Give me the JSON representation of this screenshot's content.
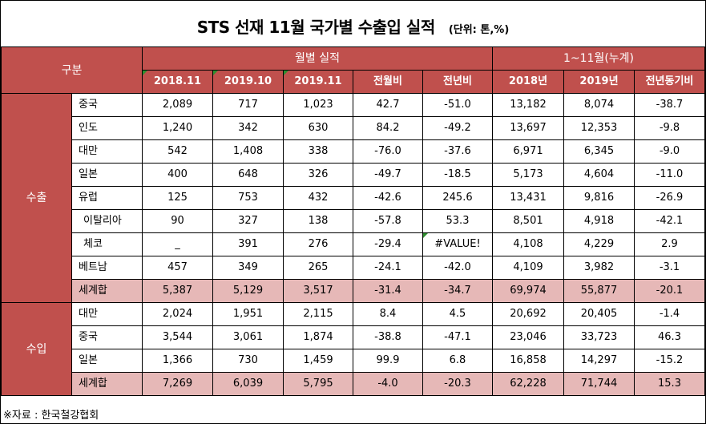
{
  "title": "STS 선재 11월 국가별 수출입 실적",
  "unit": "(단위: 톤,%)",
  "header": {
    "category": "구분",
    "monthly": "월별 실적",
    "cumulative": "1~11월(누계)",
    "columns": [
      "2018.11",
      "2019.10",
      "2019.11",
      "전월비",
      "전년비",
      "2018년",
      "2019년",
      "전년동기비"
    ]
  },
  "groups": [
    {
      "name": "수출",
      "rows": [
        {
          "country": "중국",
          "values": [
            "2,089",
            "717",
            "1,023",
            "42.7",
            "-51.0",
            "13,182",
            "8,074",
            "-38.7"
          ]
        },
        {
          "country": "인도",
          "values": [
            "1,240",
            "342",
            "630",
            "84.2",
            "-49.2",
            "13,697",
            "12,353",
            "-9.8"
          ]
        },
        {
          "country": "대만",
          "values": [
            "542",
            "1,408",
            "338",
            "-76.0",
            "-37.6",
            "6,971",
            "6,345",
            "-9.0"
          ]
        },
        {
          "country": "일본",
          "values": [
            "400",
            "648",
            "326",
            "-49.7",
            "-18.5",
            "5,173",
            "4,604",
            "-11.0"
          ]
        },
        {
          "country": "유럽",
          "values": [
            "125",
            "753",
            "432",
            "-42.6",
            "245.6",
            "13,431",
            "9,816",
            "-26.9"
          ]
        },
        {
          "country": "이탈리아",
          "values": [
            "90",
            "327",
            "138",
            "-57.8",
            "53.3",
            "8,501",
            "4,918",
            "-42.1"
          ]
        },
        {
          "country": "체코",
          "values": [
            "_",
            "391",
            "276",
            "-29.4",
            "#VALUE!",
            "4,108",
            "4,229",
            "2.9"
          ]
        },
        {
          "country": "베트남",
          "values": [
            "457",
            "349",
            "265",
            "-24.1",
            "-42.0",
            "4,109",
            "3,982",
            "-3.1"
          ]
        },
        {
          "country": "세계합",
          "values": [
            "5,387",
            "5,129",
            "3,517",
            "-31.4",
            "-34.7",
            "69,974",
            "55,877",
            "-20.1"
          ]
        }
      ]
    },
    {
      "name": "수입",
      "rows": [
        {
          "country": "대만",
          "values": [
            "2,024",
            "1,951",
            "2,115",
            "8.4",
            "4.5",
            "20,692",
            "20,405",
            "-1.4"
          ]
        },
        {
          "country": "중국",
          "values": [
            "3,544",
            "3,061",
            "1,874",
            "-38.8",
            "-47.1",
            "23,046",
            "33,723",
            "46.3"
          ]
        },
        {
          "country": "일본",
          "values": [
            "1,366",
            "730",
            "1,459",
            "99.9",
            "6.8",
            "16,858",
            "14,297",
            "-15.2"
          ]
        },
        {
          "country": "세계합",
          "values": [
            "7,269",
            "6,039",
            "5,795",
            "-4.0",
            "-20.3",
            "62,228",
            "71,744",
            "15.3"
          ]
        }
      ]
    }
  ],
  "source": "※자료 : 한국철강협회"
}
